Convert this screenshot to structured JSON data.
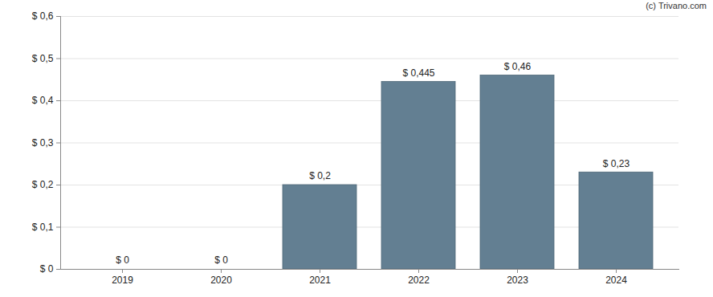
{
  "chart_data": {
    "type": "bar",
    "caption": "(c) Trivano.com",
    "categories": [
      "2019",
      "2020",
      "2021",
      "2022",
      "2023",
      "2024"
    ],
    "values": [
      0,
      0,
      0.2,
      0.445,
      0.46,
      0.23
    ],
    "value_labels": [
      "$ 0",
      "$ 0",
      "$ 0,2",
      "$ 0,445",
      "$ 0,46",
      "$ 0,23"
    ],
    "data_labels": true,
    "color": "#637f92",
    "ylim": [
      0,
      0.6
    ],
    "yticks": [
      {
        "value": 0,
        "label": "$ 0"
      },
      {
        "value": 0.1,
        "label": "$ 0,1"
      },
      {
        "value": 0.2,
        "label": "$ 0,2"
      },
      {
        "value": 0.3,
        "label": "$ 0,3"
      },
      {
        "value": 0.4,
        "label": "$ 0,4"
      },
      {
        "value": 0.5,
        "label": "$ 0,5"
      },
      {
        "value": 0.6,
        "label": "$ 0,6"
      }
    ],
    "grid": true
  }
}
